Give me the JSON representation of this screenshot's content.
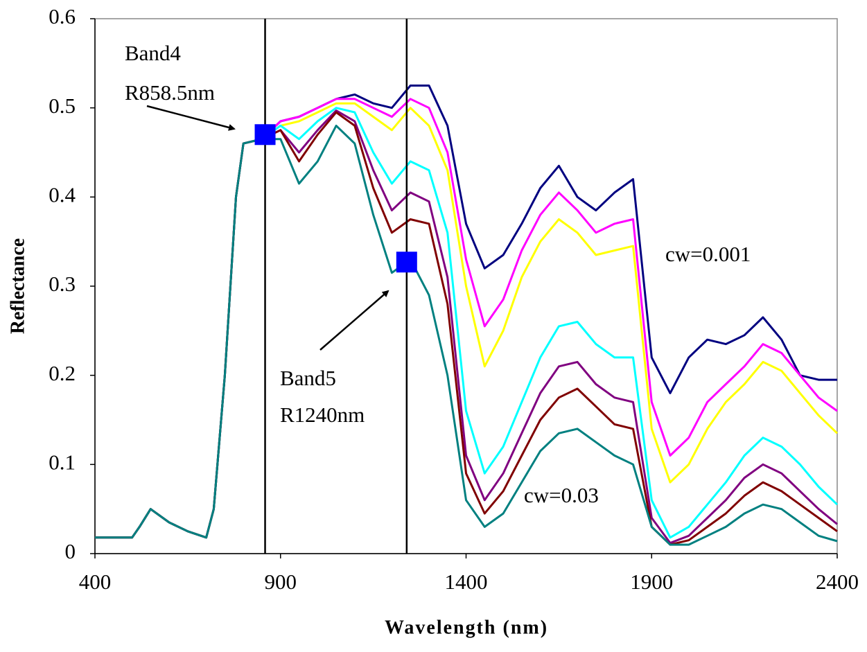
{
  "chart_data": {
    "type": "line",
    "xlabel": "Wavelength (nm)",
    "ylabel": "Reflectance",
    "x": [
      400,
      500,
      520,
      550,
      600,
      650,
      700,
      720,
      750,
      780,
      800,
      850,
      900,
      950,
      1000,
      1050,
      1100,
      1150,
      1200,
      1250,
      1300,
      1350,
      1400,
      1450,
      1500,
      1550,
      1600,
      1650,
      1700,
      1750,
      1800,
      1850,
      1900,
      1950,
      2000,
      2050,
      2100,
      2150,
      2200,
      2250,
      2300,
      2350,
      2400
    ],
    "xlim": [
      400,
      2400
    ],
    "xticks": [
      400,
      900,
      1400,
      1900,
      2400
    ],
    "ylim": [
      0,
      0.6
    ],
    "yticks": [
      0,
      0.1,
      0.2,
      0.3,
      0.4,
      0.5,
      0.6
    ],
    "grid": false,
    "series": [
      {
        "color": "#000080",
        "values": [
          0.018,
          0.018,
          0.03,
          0.05,
          0.035,
          0.025,
          0.018,
          0.05,
          0.2,
          0.4,
          0.46,
          0.465,
          0.485,
          0.49,
          0.5,
          0.51,
          0.515,
          0.505,
          0.5,
          0.525,
          0.525,
          0.48,
          0.37,
          0.32,
          0.335,
          0.37,
          0.41,
          0.435,
          0.4,
          0.385,
          0.405,
          0.42,
          0.22,
          0.18,
          0.22,
          0.24,
          0.235,
          0.245,
          0.265,
          0.24,
          0.2,
          0.195,
          0.195
        ]
      },
      {
        "color": "#ff00ff",
        "values": [
          0.018,
          0.018,
          0.03,
          0.05,
          0.035,
          0.025,
          0.018,
          0.05,
          0.2,
          0.4,
          0.46,
          0.465,
          0.485,
          0.49,
          0.5,
          0.51,
          0.51,
          0.5,
          0.49,
          0.51,
          0.5,
          0.45,
          0.33,
          0.255,
          0.285,
          0.34,
          0.38,
          0.405,
          0.385,
          0.36,
          0.37,
          0.375,
          0.17,
          0.11,
          0.13,
          0.17,
          0.19,
          0.21,
          0.235,
          0.225,
          0.2,
          0.175,
          0.16
        ]
      },
      {
        "color": "#ffff00",
        "values": [
          0.018,
          0.018,
          0.03,
          0.05,
          0.035,
          0.025,
          0.018,
          0.05,
          0.2,
          0.4,
          0.46,
          0.465,
          0.48,
          0.485,
          0.495,
          0.505,
          0.505,
          0.49,
          0.475,
          0.5,
          0.48,
          0.43,
          0.3,
          0.21,
          0.25,
          0.31,
          0.35,
          0.375,
          0.36,
          0.335,
          0.34,
          0.345,
          0.14,
          0.08,
          0.1,
          0.14,
          0.17,
          0.19,
          0.215,
          0.205,
          0.18,
          0.155,
          0.135
        ]
      },
      {
        "color": "#00ffff",
        "values": [
          0.018,
          0.018,
          0.03,
          0.05,
          0.035,
          0.025,
          0.018,
          0.05,
          0.2,
          0.4,
          0.46,
          0.465,
          0.48,
          0.465,
          0.485,
          0.5,
          0.495,
          0.45,
          0.415,
          0.44,
          0.43,
          0.36,
          0.16,
          0.09,
          0.12,
          0.17,
          0.22,
          0.255,
          0.26,
          0.235,
          0.22,
          0.22,
          0.06,
          0.018,
          0.03,
          0.055,
          0.08,
          0.11,
          0.13,
          0.12,
          0.1,
          0.075,
          0.055
        ]
      },
      {
        "color": "#800080",
        "values": [
          0.018,
          0.018,
          0.03,
          0.05,
          0.035,
          0.025,
          0.018,
          0.05,
          0.2,
          0.4,
          0.46,
          0.465,
          0.475,
          0.45,
          0.475,
          0.497,
          0.485,
          0.43,
          0.385,
          0.405,
          0.395,
          0.31,
          0.11,
          0.06,
          0.09,
          0.135,
          0.18,
          0.21,
          0.215,
          0.19,
          0.175,
          0.17,
          0.04,
          0.012,
          0.02,
          0.04,
          0.06,
          0.085,
          0.1,
          0.09,
          0.07,
          0.05,
          0.033
        ]
      },
      {
        "color": "#800000",
        "values": [
          0.018,
          0.018,
          0.03,
          0.05,
          0.035,
          0.025,
          0.018,
          0.05,
          0.2,
          0.4,
          0.46,
          0.465,
          0.475,
          0.44,
          0.47,
          0.495,
          0.48,
          0.41,
          0.36,
          0.375,
          0.37,
          0.28,
          0.09,
          0.045,
          0.07,
          0.11,
          0.15,
          0.175,
          0.185,
          0.165,
          0.145,
          0.14,
          0.03,
          0.01,
          0.015,
          0.03,
          0.045,
          0.065,
          0.08,
          0.07,
          0.055,
          0.04,
          0.025
        ]
      },
      {
        "color": "#008080",
        "values": [
          0.018,
          0.018,
          0.03,
          0.05,
          0.035,
          0.025,
          0.018,
          0.05,
          0.2,
          0.4,
          0.46,
          0.465,
          0.465,
          0.415,
          0.44,
          0.48,
          0.46,
          0.38,
          0.315,
          0.33,
          0.29,
          0.2,
          0.06,
          0.03,
          0.045,
          0.08,
          0.115,
          0.135,
          0.14,
          0.125,
          0.11,
          0.1,
          0.03,
          0.01,
          0.01,
          0.02,
          0.03,
          0.045,
          0.055,
          0.05,
          0.035,
          0.02,
          0.014
        ]
      }
    ],
    "vlines": [
      858.5,
      1240
    ],
    "markers": [
      {
        "x": 858.5,
        "y": 0.47
      },
      {
        "x": 1240,
        "y": 0.327
      }
    ],
    "marker_color": "#0000ff",
    "annotations": [
      "Band4",
      "R858.5nm",
      "Band5",
      "R1240nm",
      "cw=0.001",
      "cw=0.03"
    ]
  }
}
